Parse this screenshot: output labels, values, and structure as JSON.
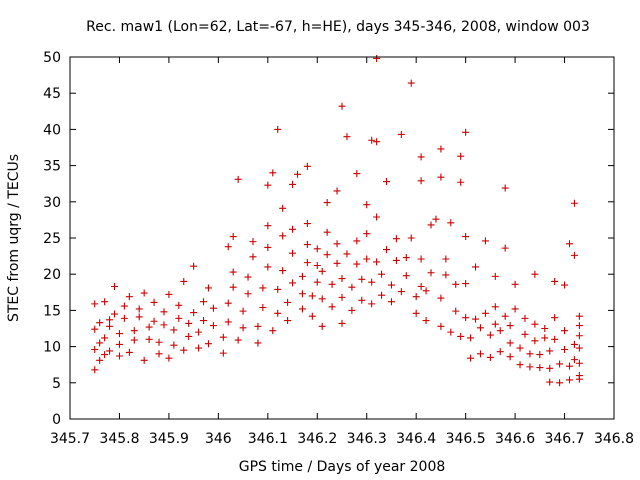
{
  "chart_data": {
    "type": "scatter",
    "title": "Rec. maw1 (Lon=62, Lat=-67, h=HE), days 345-346, 2008, window 003",
    "xlabel": "GPS time / Days of year 2008",
    "ylabel": "STEC from uqrg / TECUs",
    "xlim": [
      345.7,
      346.8
    ],
    "ylim": [
      0,
      50
    ],
    "xticks": [
      "345.7",
      "345.8",
      "345.9",
      "346",
      "346.1",
      "346.2",
      "346.3",
      "346.4",
      "346.5",
      "346.6",
      "346.7",
      "346.8"
    ],
    "yticks": [
      "0",
      "5",
      "10",
      "15",
      "20",
      "25",
      "30",
      "35",
      "40",
      "45",
      "50"
    ],
    "grid": false,
    "marker": "plus",
    "color": "#cc0000",
    "series": [
      {
        "values": [
          [
            345.75,
            6.8
          ],
          [
            345.76,
            8.1
          ],
          [
            345.75,
            9.6
          ],
          [
            345.76,
            10.5
          ],
          [
            345.75,
            12.4
          ],
          [
            345.76,
            13.3
          ],
          [
            345.75,
            15.9
          ],
          [
            345.77,
            16.2
          ],
          [
            345.77,
            8.9
          ],
          [
            345.78,
            9.4
          ],
          [
            345.77,
            11.2
          ],
          [
            345.78,
            12.8
          ],
          [
            345.78,
            13.7
          ],
          [
            345.79,
            14.5
          ],
          [
            345.79,
            18.3
          ],
          [
            345.8,
            8.7
          ],
          [
            345.8,
            10.3
          ],
          [
            345.8,
            11.8
          ],
          [
            345.81,
            13.9
          ],
          [
            345.81,
            15.6
          ],
          [
            345.82,
            16.9
          ],
          [
            345.82,
            9.2
          ],
          [
            345.83,
            10.9
          ],
          [
            345.83,
            12.2
          ],
          [
            345.84,
            14.1
          ],
          [
            345.84,
            15.2
          ],
          [
            345.85,
            17.4
          ],
          [
            345.85,
            8.1
          ],
          [
            345.86,
            11.0
          ],
          [
            345.86,
            12.7
          ],
          [
            345.87,
            13.5
          ],
          [
            345.87,
            16.1
          ],
          [
            345.88,
            9.0
          ],
          [
            345.88,
            10.6
          ],
          [
            345.89,
            13.0
          ],
          [
            345.89,
            14.8
          ],
          [
            345.9,
            17.2
          ],
          [
            345.9,
            8.4
          ],
          [
            345.91,
            10.2
          ],
          [
            345.91,
            12.3
          ],
          [
            345.92,
            13.9
          ],
          [
            345.92,
            15.7
          ],
          [
            345.93,
            19.0
          ],
          [
            345.93,
            9.5
          ],
          [
            345.94,
            11.4
          ],
          [
            345.94,
            13.2
          ],
          [
            345.95,
            14.7
          ],
          [
            345.95,
            21.1
          ],
          [
            345.96,
            9.8
          ],
          [
            345.96,
            12.0
          ],
          [
            345.97,
            13.6
          ],
          [
            345.97,
            16.2
          ],
          [
            345.98,
            18.1
          ],
          [
            345.98,
            10.4
          ],
          [
            345.99,
            12.9
          ],
          [
            345.99,
            15.3
          ],
          [
            346.01,
            9.1
          ],
          [
            346.01,
            11.3
          ],
          [
            346.02,
            13.4
          ],
          [
            346.02,
            16.0
          ],
          [
            346.03,
            18.2
          ],
          [
            346.03,
            20.3
          ],
          [
            346.02,
            23.8
          ],
          [
            346.03,
            25.2
          ],
          [
            346.04,
            33.1
          ],
          [
            346.04,
            10.9
          ],
          [
            346.05,
            12.6
          ],
          [
            346.05,
            14.9
          ],
          [
            346.06,
            17.3
          ],
          [
            346.06,
            19.6
          ],
          [
            346.07,
            22.4
          ],
          [
            346.07,
            24.5
          ],
          [
            346.08,
            10.5
          ],
          [
            346.08,
            12.8
          ],
          [
            346.09,
            15.4
          ],
          [
            346.09,
            18.1
          ],
          [
            346.1,
            21.0
          ],
          [
            346.1,
            23.7
          ],
          [
            346.1,
            26.7
          ],
          [
            346.1,
            32.3
          ],
          [
            346.11,
            34.0
          ],
          [
            346.11,
            12.2
          ],
          [
            346.12,
            14.6
          ],
          [
            346.12,
            17.9
          ],
          [
            346.13,
            20.5
          ],
          [
            346.13,
            25.3
          ],
          [
            346.13,
            29.1
          ],
          [
            346.12,
            40.0
          ],
          [
            346.14,
            13.6
          ],
          [
            346.14,
            16.1
          ],
          [
            346.15,
            18.8
          ],
          [
            346.15,
            22.9
          ],
          [
            346.15,
            26.2
          ],
          [
            346.15,
            32.4
          ],
          [
            346.16,
            33.8
          ],
          [
            346.17,
            15.2
          ],
          [
            346.17,
            17.3
          ],
          [
            346.17,
            19.7
          ],
          [
            346.18,
            21.6
          ],
          [
            346.18,
            24.1
          ],
          [
            346.18,
            27.0
          ],
          [
            346.18,
            34.9
          ],
          [
            346.19,
            14.2
          ],
          [
            346.19,
            17.0
          ],
          [
            346.2,
            18.9
          ],
          [
            346.2,
            21.2
          ],
          [
            346.2,
            23.5
          ],
          [
            346.21,
            12.8
          ],
          [
            346.21,
            16.6
          ],
          [
            346.21,
            20.4
          ],
          [
            346.22,
            22.7
          ],
          [
            346.22,
            25.8
          ],
          [
            346.22,
            29.9
          ],
          [
            346.23,
            15.5
          ],
          [
            346.23,
            18.6
          ],
          [
            346.24,
            21.5
          ],
          [
            346.24,
            24.2
          ],
          [
            346.24,
            31.5
          ],
          [
            346.25,
            13.2
          ],
          [
            346.25,
            16.8
          ],
          [
            346.25,
            19.4
          ],
          [
            346.26,
            22.8
          ],
          [
            346.26,
            39.0
          ],
          [
            346.25,
            43.2
          ],
          [
            346.27,
            15.0
          ],
          [
            346.27,
            18.2
          ],
          [
            346.28,
            21.4
          ],
          [
            346.28,
            24.6
          ],
          [
            346.28,
            33.9
          ],
          [
            346.29,
            16.4
          ],
          [
            346.29,
            19.3
          ],
          [
            346.3,
            22.1
          ],
          [
            346.3,
            25.6
          ],
          [
            346.3,
            29.6
          ],
          [
            346.31,
            15.9
          ],
          [
            346.31,
            18.9
          ],
          [
            346.32,
            21.7
          ],
          [
            346.32,
            27.9
          ],
          [
            346.32,
            38.3
          ],
          [
            346.31,
            38.5
          ],
          [
            346.33,
            17.1
          ],
          [
            346.33,
            20.0
          ],
          [
            346.34,
            23.4
          ],
          [
            346.34,
            32.8
          ],
          [
            346.35,
            16.2
          ],
          [
            346.35,
            18.5
          ],
          [
            346.36,
            21.9
          ],
          [
            346.36,
            24.9
          ],
          [
            346.37,
            39.3
          ],
          [
            346.32,
            49.8
          ],
          [
            346.37,
            17.6
          ],
          [
            346.38,
            19.8
          ],
          [
            346.38,
            22.3
          ],
          [
            346.39,
            25.0
          ],
          [
            346.39,
            46.4
          ],
          [
            346.4,
            14.6
          ],
          [
            346.4,
            16.9
          ],
          [
            346.41,
            18.3
          ],
          [
            346.41,
            22.1
          ],
          [
            346.41,
            32.9
          ],
          [
            346.41,
            36.2
          ],
          [
            346.42,
            13.6
          ],
          [
            346.42,
            17.7
          ],
          [
            346.43,
            20.2
          ],
          [
            346.43,
            26.8
          ],
          [
            346.44,
            27.6
          ],
          [
            346.45,
            12.8
          ],
          [
            346.45,
            16.7
          ],
          [
            346.45,
            33.4
          ],
          [
            346.45,
            37.3
          ],
          [
            346.46,
            19.9
          ],
          [
            346.46,
            22.1
          ],
          [
            346.47,
            27.1
          ],
          [
            346.47,
            12.0
          ],
          [
            346.48,
            14.9
          ],
          [
            346.48,
            18.6
          ],
          [
            346.49,
            32.7
          ],
          [
            346.49,
            36.3
          ],
          [
            346.49,
            11.4
          ],
          [
            346.5,
            14.0
          ],
          [
            346.5,
            18.7
          ],
          [
            346.5,
            25.2
          ],
          [
            346.5,
            39.6
          ],
          [
            346.51,
            8.4
          ],
          [
            346.51,
            11.2
          ],
          [
            346.52,
            13.8
          ],
          [
            346.52,
            21.0
          ],
          [
            346.53,
            9.0
          ],
          [
            346.53,
            12.6
          ],
          [
            346.54,
            14.6
          ],
          [
            346.54,
            24.6
          ],
          [
            346.55,
            8.5
          ],
          [
            346.55,
            11.6
          ],
          [
            346.56,
            13.1
          ],
          [
            346.56,
            15.5
          ],
          [
            346.56,
            19.7
          ],
          [
            346.57,
            9.3
          ],
          [
            346.57,
            12.2
          ],
          [
            346.58,
            14.2
          ],
          [
            346.58,
            23.6
          ],
          [
            346.58,
            31.9
          ],
          [
            346.59,
            8.6
          ],
          [
            346.59,
            10.5
          ],
          [
            346.59,
            12.9
          ],
          [
            346.6,
            15.2
          ],
          [
            346.6,
            18.6
          ],
          [
            346.61,
            7.5
          ],
          [
            346.61,
            9.8
          ],
          [
            346.62,
            11.7
          ],
          [
            346.62,
            13.9
          ],
          [
            346.63,
            7.2
          ],
          [
            346.63,
            9.0
          ],
          [
            346.64,
            10.8
          ],
          [
            346.64,
            13.1
          ],
          [
            346.64,
            20.0
          ],
          [
            346.65,
            7.1
          ],
          [
            346.65,
            8.9
          ],
          [
            346.66,
            11.2
          ],
          [
            346.66,
            12.5
          ],
          [
            346.67,
            5.1
          ],
          [
            346.67,
            7.0
          ],
          [
            346.67,
            9.4
          ],
          [
            346.68,
            11.0
          ],
          [
            346.68,
            14.0
          ],
          [
            346.68,
            19.0
          ],
          [
            346.69,
            5.0
          ],
          [
            346.69,
            7.6
          ],
          [
            346.7,
            9.6
          ],
          [
            346.7,
            12.2
          ],
          [
            346.7,
            18.5
          ],
          [
            346.71,
            5.4
          ],
          [
            346.71,
            7.3
          ],
          [
            346.72,
            8.2
          ],
          [
            346.72,
            10.3
          ],
          [
            346.71,
            24.2
          ],
          [
            346.72,
            22.6
          ],
          [
            346.72,
            29.8
          ],
          [
            346.73,
            5.5
          ],
          [
            346.73,
            6.0
          ],
          [
            346.73,
            7.7
          ],
          [
            346.73,
            9.8
          ],
          [
            346.73,
            11.5
          ],
          [
            346.73,
            12.9
          ],
          [
            346.73,
            14.2
          ]
        ]
      }
    ]
  }
}
